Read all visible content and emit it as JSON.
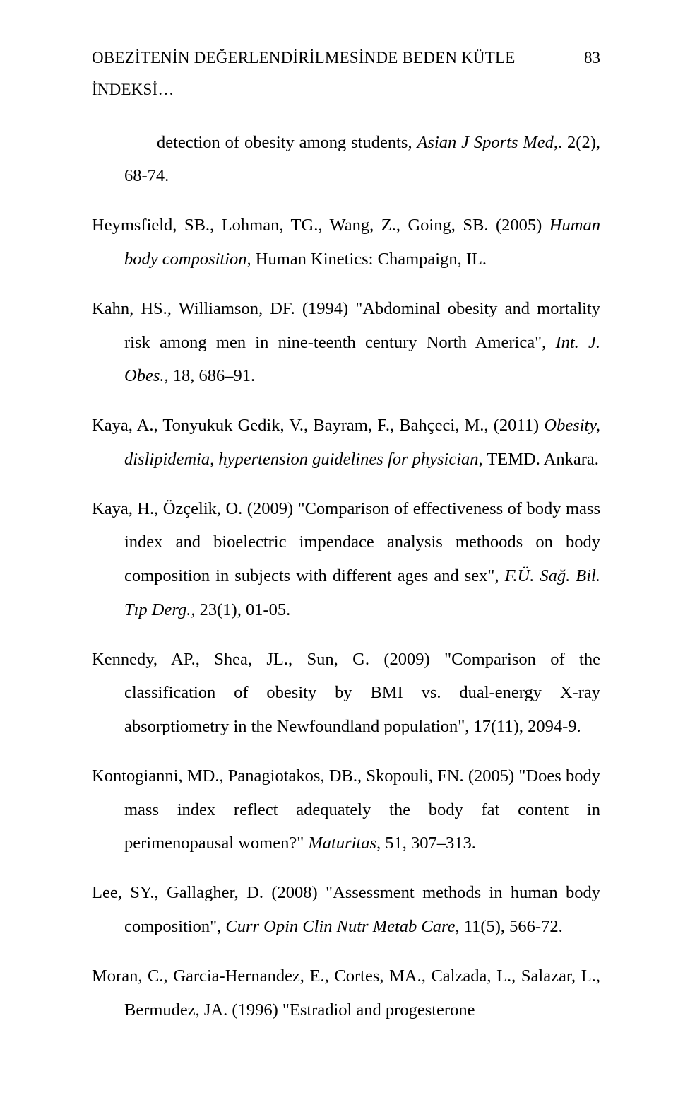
{
  "header": {
    "title": "OBEZİTENİN DEĞERLENDİRİLMESİNDE BEDEN KÜTLE İNDEKSİ…",
    "page_number": "83"
  },
  "references": [
    {
      "type": "continuation",
      "segments": [
        {
          "text": "detection of obesity among students, ",
          "italic": false
        },
        {
          "text": "Asian J Sports Med,",
          "italic": true
        },
        {
          "text": ". 2(2), 68-74.",
          "italic": false
        }
      ]
    },
    {
      "type": "entry",
      "segments": [
        {
          "text": "Heymsfield, SB., Lohman, TG., Wang, Z., Going, SB. (2005) ",
          "italic": false
        },
        {
          "text": "Human body composition,",
          "italic": true
        },
        {
          "text": " Human Kinetics: Champaign, IL.",
          "italic": false
        }
      ]
    },
    {
      "type": "entry",
      "segments": [
        {
          "text": "Kahn, HS., Williamson, DF. (1994) \"Abdominal obesity and mortality risk among men in nine-teenth century North America\", ",
          "italic": false
        },
        {
          "text": "Int. J. Obes.,",
          "italic": true
        },
        {
          "text": " 18, 686–91.",
          "italic": false
        }
      ]
    },
    {
      "type": "entry",
      "segments": [
        {
          "text": "Kaya, A., Tonyukuk Gedik, V., Bayram, F., Bahçeci, M., (2011) ",
          "italic": false
        },
        {
          "text": "Obesity, dislipidemia, hypertension guidelines for physician,",
          "italic": true
        },
        {
          "text": " TEMD. Ankara.",
          "italic": false
        }
      ]
    },
    {
      "type": "entry",
      "segments": [
        {
          "text": "Kaya, H., Özçelik, O. (2009) \"Comparison of effectiveness of body mass index and bioelectric impendace analysis methoods on body composition in subjects with different ages and sex\", ",
          "italic": false
        },
        {
          "text": "F.Ü. Sağ. Bil. Tıp Derg.,",
          "italic": true
        },
        {
          "text": " 23(1), 01-05.",
          "italic": false
        }
      ]
    },
    {
      "type": "entry",
      "segments": [
        {
          "text": "Kennedy, AP., Shea, JL., Sun, G. (2009) \"Comparison of the classification of obesity by BMI vs. dual-energy X-ray absorptiometry in the Newfoundland population\", 17(11), 2094-9.",
          "italic": false
        }
      ]
    },
    {
      "type": "entry",
      "segments": [
        {
          "text": "Kontogianni, MD., Panagiotakos, DB., Skopouli, FN. (2005) \"Does body mass index reflect adequately the body fat content in perimenopausal women?\" ",
          "italic": false
        },
        {
          "text": "Maturitas,",
          "italic": true
        },
        {
          "text": " 51, 307–313.",
          "italic": false
        }
      ]
    },
    {
      "type": "entry",
      "segments": [
        {
          "text": "Lee, SY., Gallagher, D. (2008) \"Assessment methods in human body composition\", ",
          "italic": false
        },
        {
          "text": "Curr Opin Clin Nutr Metab Care",
          "italic": true
        },
        {
          "text": ", 11(5), 566-72.",
          "italic": false
        }
      ]
    },
    {
      "type": "entry",
      "segments": [
        {
          "text": "Moran, C., Garcia-Hernandez, E., Cortes, MA., Calzada, L., Salazar, L., Bermudez, JA. (1996) \"Estradiol and progesterone",
          "italic": false
        }
      ]
    }
  ]
}
